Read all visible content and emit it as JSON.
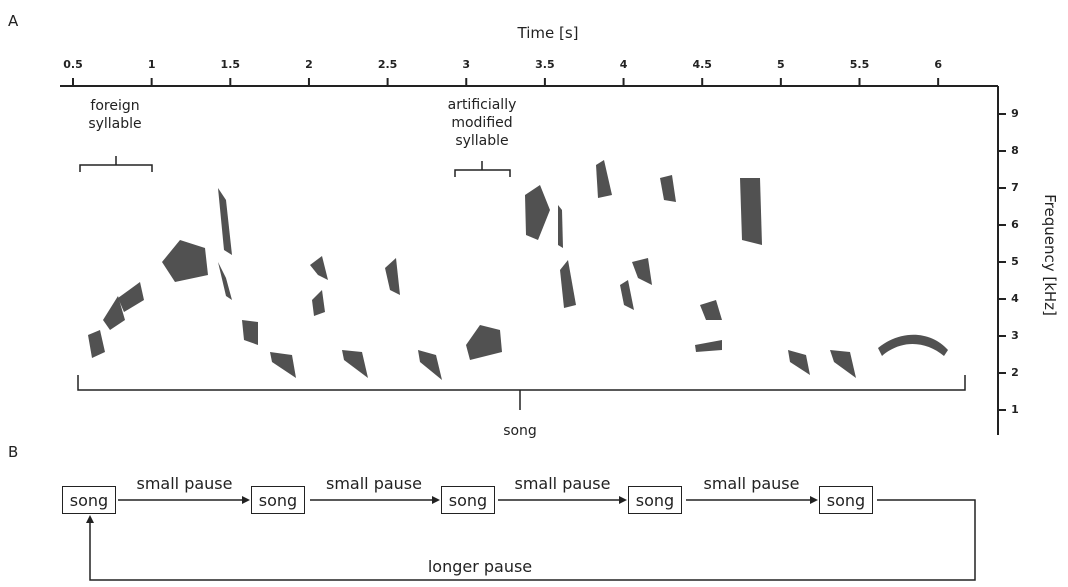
{
  "panel_a": {
    "label": "A",
    "x_axis_title": "Time [s]",
    "y_axis_title": "Frequency [kHz]",
    "x_ticks": [
      0.5,
      1,
      1.5,
      2,
      2.5,
      3,
      3.5,
      4,
      4.5,
      5,
      5.5,
      6
    ],
    "y_ticks": [
      1,
      2,
      3,
      4,
      5,
      6,
      7,
      8,
      9
    ],
    "annotations": {
      "foreign": "foreign syllable",
      "modified": "artificially modified syllable",
      "song": "song"
    }
  },
  "panel_b": {
    "label": "B",
    "nodes": [
      "song",
      "song",
      "song",
      "song",
      "song"
    ],
    "edges": [
      "small pause",
      "small pause",
      "small pause",
      "small pause"
    ],
    "loop_label": "longer pause"
  }
}
